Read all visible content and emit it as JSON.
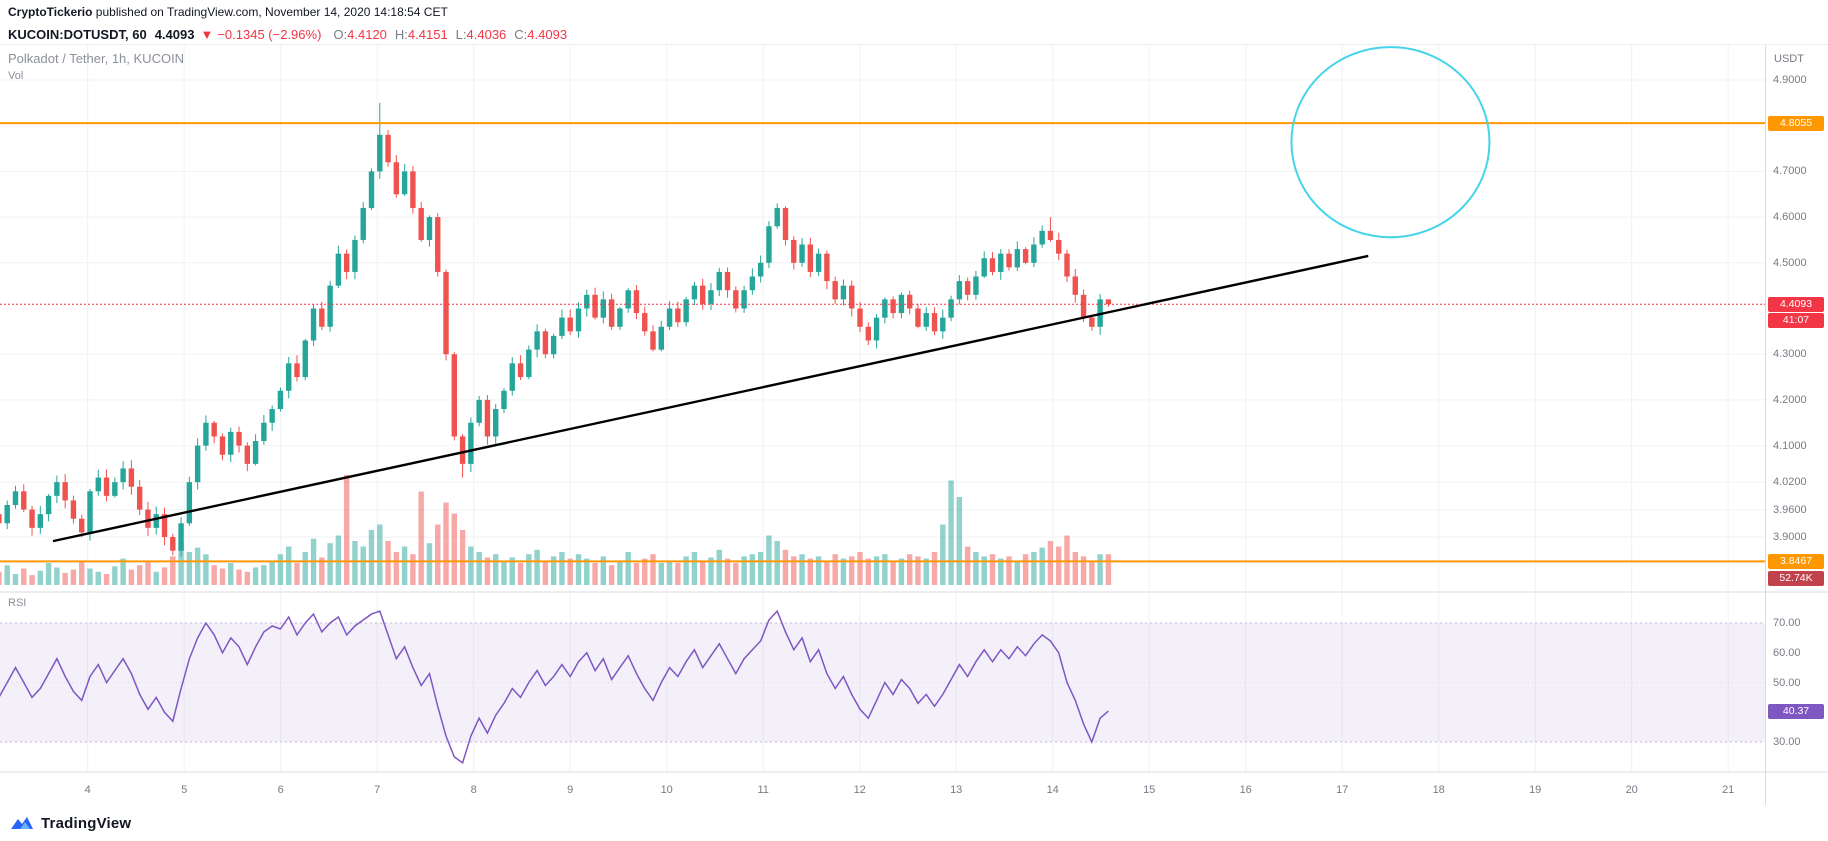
{
  "header": {
    "author": "CryptoTickerio",
    "publish_info": " published on TradingView.com, November 14, 2020 14:18:54 CET"
  },
  "symbol_bar": {
    "symbol": "KUCOIN:DOTUSDT, 60",
    "last": "4.4093",
    "direction": "▼",
    "change": "−0.1345 (−2.96%)",
    "ohlc": [
      {
        "label": "O:",
        "value": "4.4120"
      },
      {
        "label": "H:",
        "value": "4.4151"
      },
      {
        "label": "L:",
        "value": "4.4036"
      },
      {
        "label": "C:",
        "value": "4.4093"
      }
    ]
  },
  "chart": {
    "title": "Polkadot / Tether, 1h, KUCOIN",
    "vol_label": "Vol",
    "rsi_label": "RSI",
    "axis_unit": "USDT"
  },
  "badges": {
    "resistance": "4.8055",
    "last_price": "4.4093",
    "countdown": "41:07",
    "support": "3.8467",
    "volume": "52.74K",
    "rsi": "40.37"
  },
  "colors": {
    "up": "#26a69a",
    "down": "#ef5350",
    "accent_orange": "#ff9800",
    "last_price_red": "#f23645",
    "rsi_purple": "#7e57c2",
    "ellipse_cyan": "#45d4e8",
    "trendline": "#000000",
    "volume_badge": "#c2424b",
    "axis_text": "#787b86",
    "grid": "#f0f2f5"
  },
  "footer": {
    "brand": "TradingView"
  },
  "chart_data": {
    "type": "candlestick",
    "symbol": "KUCOIN:DOTUSDT",
    "interval": "1h",
    "title": "Polkadot / Tether, 1h, KUCOIN",
    "x_axis": {
      "labels": [
        "4",
        "5",
        "6",
        "7",
        "8",
        "9",
        "10",
        "11",
        "12",
        "13",
        "14",
        "15",
        "16",
        "17",
        "18",
        "19",
        "20",
        "21"
      ],
      "start_day": 3.08,
      "step_days": 0.0858
    },
    "y_axis": {
      "ticks": [
        4.9,
        4.7,
        4.6,
        4.5,
        4.3,
        4.2,
        4.1,
        4.02,
        3.96,
        3.9
      ],
      "range": [
        3.8,
        4.98
      ]
    },
    "levels": {
      "resistance": 4.8055,
      "support": 3.8467,
      "last_price": 4.4093
    },
    "first_open": 3.95,
    "closes": [
      3.93,
      3.97,
      4.0,
      3.96,
      3.92,
      3.95,
      3.99,
      4.02,
      3.98,
      3.94,
      3.91,
      4.0,
      4.03,
      3.99,
      4.02,
      4.05,
      4.01,
      3.96,
      3.92,
      3.95,
      3.9,
      3.87,
      3.93,
      4.02,
      4.1,
      4.15,
      4.12,
      4.08,
      4.13,
      4.1,
      4.06,
      4.11,
      4.15,
      4.18,
      4.22,
      4.28,
      4.25,
      4.33,
      4.4,
      4.36,
      4.45,
      4.52,
      4.48,
      4.55,
      4.62,
      4.7,
      4.78,
      4.72,
      4.65,
      4.7,
      4.62,
      4.55,
      4.6,
      4.48,
      4.3,
      4.12,
      4.06,
      4.15,
      4.2,
      4.12,
      4.18,
      4.22,
      4.28,
      4.25,
      4.31,
      4.35,
      4.3,
      4.34,
      4.38,
      4.35,
      4.4,
      4.43,
      4.38,
      4.42,
      4.36,
      4.4,
      4.44,
      4.39,
      4.35,
      4.31,
      4.36,
      4.4,
      4.37,
      4.42,
      4.45,
      4.41,
      4.44,
      4.48,
      4.44,
      4.4,
      4.44,
      4.47,
      4.5,
      4.58,
      4.62,
      4.55,
      4.5,
      4.54,
      4.48,
      4.52,
      4.46,
      4.42,
      4.45,
      4.4,
      4.36,
      4.33,
      4.38,
      4.42,
      4.39,
      4.43,
      4.4,
      4.36,
      4.39,
      4.35,
      4.38,
      4.42,
      4.46,
      4.43,
      4.47,
      4.51,
      4.48,
      4.52,
      4.49,
      4.53,
      4.5,
      4.54,
      4.57,
      4.55,
      4.52,
      4.47,
      4.43,
      4.38,
      4.36,
      4.42,
      4.4093
    ],
    "volumes": [
      0.12,
      0.18,
      0.1,
      0.15,
      0.09,
      0.13,
      0.2,
      0.16,
      0.11,
      0.14,
      0.22,
      0.15,
      0.12,
      0.1,
      0.17,
      0.24,
      0.14,
      0.18,
      0.21,
      0.12,
      0.16,
      0.26,
      0.38,
      0.3,
      0.34,
      0.28,
      0.18,
      0.15,
      0.2,
      0.14,
      0.12,
      0.16,
      0.18,
      0.22,
      0.28,
      0.35,
      0.2,
      0.3,
      0.42,
      0.25,
      0.38,
      0.45,
      1.0,
      0.4,
      0.35,
      0.5,
      0.55,
      0.4,
      0.3,
      0.35,
      0.28,
      0.85,
      0.38,
      0.55,
      0.75,
      0.65,
      0.5,
      0.35,
      0.3,
      0.25,
      0.28,
      0.22,
      0.25,
      0.2,
      0.28,
      0.32,
      0.22,
      0.26,
      0.3,
      0.24,
      0.28,
      0.24,
      0.2,
      0.26,
      0.18,
      0.22,
      0.3,
      0.2,
      0.24,
      0.28,
      0.2,
      0.22,
      0.2,
      0.26,
      0.3,
      0.22,
      0.25,
      0.32,
      0.24,
      0.2,
      0.26,
      0.28,
      0.3,
      0.45,
      0.4,
      0.32,
      0.26,
      0.28,
      0.24,
      0.26,
      0.22,
      0.28,
      0.24,
      0.26,
      0.3,
      0.24,
      0.26,
      0.28,
      0.22,
      0.24,
      0.28,
      0.26,
      0.24,
      0.3,
      0.55,
      0.95,
      0.8,
      0.35,
      0.3,
      0.26,
      0.28,
      0.24,
      0.26,
      0.22,
      0.28,
      0.3,
      0.34,
      0.4,
      0.35,
      0.45,
      0.3,
      0.26,
      0.22,
      0.28,
      0.28
    ],
    "volume_last": "52.74K",
    "wick_overrides": {
      "21": {
        "l": 3.86
      },
      "46": {
        "h": 4.85
      },
      "56": {
        "l": 4.03
      },
      "94": {
        "h": 4.63
      },
      "127": {
        "h": 4.6
      },
      "134": {
        "h": 4.4151,
        "l": 4.4036
      }
    },
    "rsi": {
      "values": [
        45,
        50,
        55,
        50,
        45,
        48,
        53,
        58,
        52,
        47,
        44,
        52,
        56,
        50,
        54,
        58,
        53,
        46,
        41,
        45,
        40,
        37,
        48,
        58,
        65,
        70,
        66,
        60,
        65,
        62,
        56,
        62,
        67,
        69,
        68,
        72,
        66,
        70,
        73,
        67,
        70,
        72,
        66,
        69,
        71,
        73,
        74,
        66,
        58,
        62,
        55,
        49,
        53,
        42,
        32,
        25,
        23,
        32,
        38,
        33,
        39,
        43,
        48,
        45,
        50,
        54,
        49,
        52,
        56,
        52,
        57,
        60,
        54,
        58,
        51,
        55,
        59,
        53,
        48,
        44,
        50,
        55,
        52,
        57,
        61,
        55,
        59,
        63,
        58,
        53,
        58,
        61,
        64,
        71,
        74,
        67,
        61,
        65,
        57,
        61,
        53,
        48,
        52,
        46,
        41,
        38,
        44,
        50,
        46,
        51,
        48,
        43,
        46,
        42,
        46,
        51,
        56,
        52,
        57,
        61,
        57,
        61,
        58,
        62,
        59,
        63,
        66,
        64,
        60,
        50,
        44,
        36,
        30,
        38,
        40.37
      ],
      "last": 40.37,
      "upper_band": 70,
      "lower_band": 30,
      "ticks": [
        70,
        60,
        50,
        30
      ]
    },
    "annotations": {
      "trendline": {
        "from_day": 3.64,
        "from_price": 3.891,
        "to_day": 17.27,
        "to_price": 4.515
      },
      "ellipse": {
        "center_day": 17.5,
        "center_price": 4.764,
        "radius_days": 1.026,
        "radius_price": 0.208
      }
    }
  }
}
